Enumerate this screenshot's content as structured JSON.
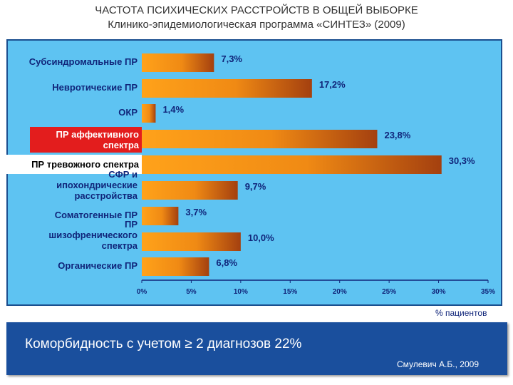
{
  "title": "ЧАСТОТА ПСИХИЧЕСКИХ РАССТРОЙСТВ В ОБЩЕЙ ВЫБОРКЕ",
  "subtitle": "Клинико-эпидемиологическая программа «СИНТЕЗ» (2009)",
  "chart_data": {
    "type": "bar",
    "orientation": "horizontal",
    "categories": [
      "Субсиндромальные ПР",
      "Невротические ПР",
      "ОКР",
      "ПР аффективного спектра",
      "ПР тревожного спектра",
      "СФР и ипохондрические расстройства",
      "Соматогенные ПР",
      "ПР шизофренического спектра",
      "Органические ПР"
    ],
    "values": [
      7.3,
      17.2,
      1.4,
      23.8,
      30.3,
      9.7,
      3.7,
      10.0,
      6.8
    ],
    "value_labels": [
      "7,3%",
      "17,2%",
      "1,4%",
      "23,8%",
      "30,3%",
      "9,7%",
      "3,7%",
      "10,0%",
      "6,8%"
    ],
    "xlim": [
      0,
      35
    ],
    "xticks": [
      "0%",
      "5%",
      "10%",
      "15%",
      "20%",
      "25%",
      "30%",
      "35%"
    ],
    "xlabel": "% пациентов",
    "highlighted": {
      "ПР аффективного спектра": "#e31d1d",
      "ПР тревожного спектра": "#ffffff"
    },
    "bar_color": [
      "#ffa21a",
      "#a4400f"
    ],
    "background": "#5ec3f2"
  },
  "footer": {
    "text": "Коморбидность с учетом ≥ 2 диагнозов 22%",
    "source": "Смулевич А.Б., 2009",
    "color": "#1a4f9d"
  }
}
